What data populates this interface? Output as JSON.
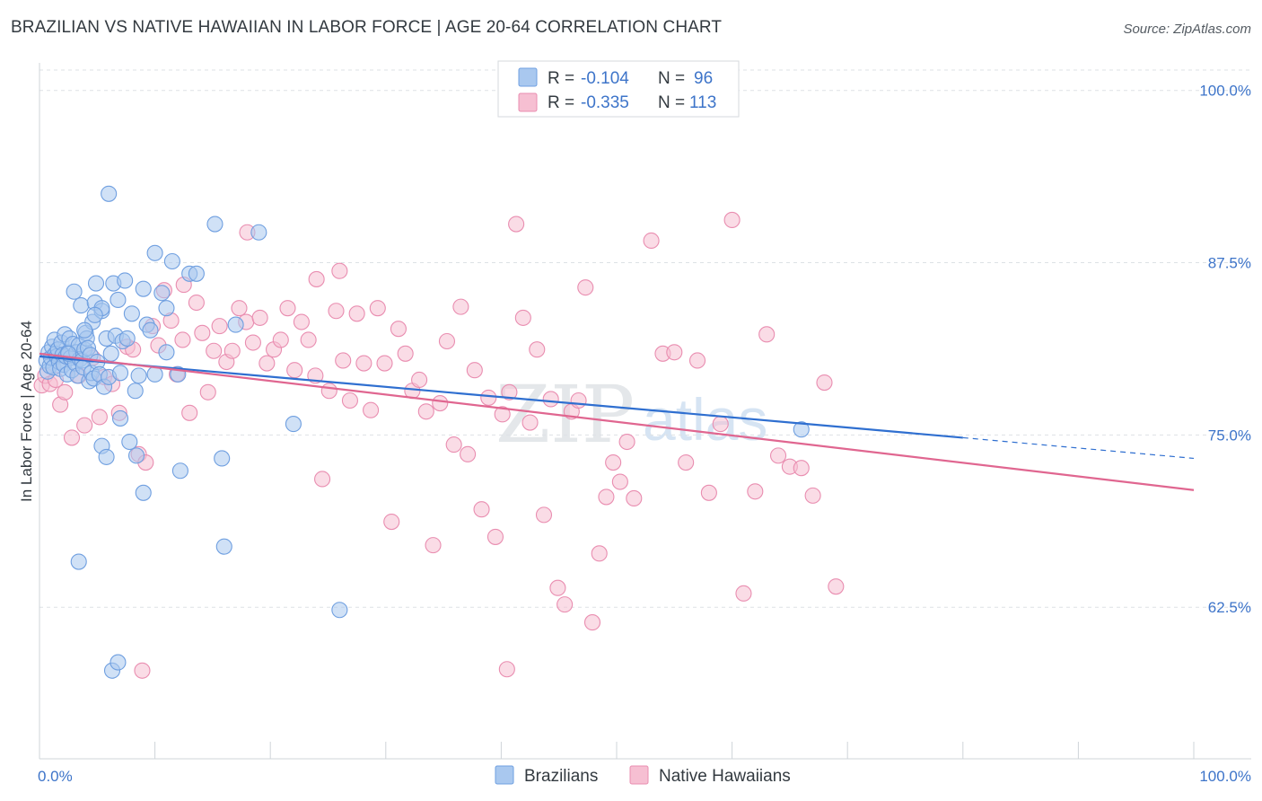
{
  "header": {
    "title": "BRAZILIAN VS NATIVE HAWAIIAN IN LABOR FORCE | AGE 20-64 CORRELATION CHART",
    "source": "Source: ZipAtlas.com"
  },
  "colors": {
    "blue_fill": "#a9c8ef",
    "blue_stroke": "#6f9fe0",
    "blue_line": "#2f6fd0",
    "pink_fill": "#f6bfd2",
    "pink_stroke": "#e98db0",
    "pink_line": "#e06690",
    "grid": "#dde1e5",
    "axis_text": "#3d74c9"
  },
  "legend": {
    "r_label": "R =",
    "n_label": "N =",
    "rows": [
      {
        "name": "Brazilians",
        "r": "-0.104",
        "n": "96"
      },
      {
        "name": "Native Hawaiians",
        "r": "-0.335",
        "n": "113"
      }
    ]
  },
  "watermark": {
    "zip": "ZIP",
    "atlas": "atlas"
  },
  "chart_data": {
    "type": "scatter",
    "title": "BRAZILIAN VS NATIVE HAWAIIAN IN LABOR FORCE | AGE 20-64 CORRELATION CHART",
    "xlabel": "",
    "ylabel": "In Labor Force | Age 20-64",
    "xlim": [
      0,
      100
    ],
    "ylim": [
      51.5,
      102
    ],
    "x_tick_labels": [
      "0.0%",
      "100.0%"
    ],
    "y_ticks": [
      62.5,
      75.0,
      87.5,
      100.0
    ],
    "y_tick_labels": [
      "62.5%",
      "75.0%",
      "87.5%",
      "100.0%"
    ],
    "series": [
      {
        "name": "Brazilians",
        "r": -0.104,
        "n": 96,
        "trend": {
          "x0": 0,
          "y0": 80.7,
          "x1": 80,
          "y1": 74.8,
          "dash_to_x": 100,
          "dash_to_y": 73.3
        },
        "points": [
          [
            0.6,
            80.4
          ],
          [
            0.7,
            79.6
          ],
          [
            0.8,
            81.0
          ],
          [
            0.9,
            80.0
          ],
          [
            1.0,
            80.6
          ],
          [
            1.1,
            81.4
          ],
          [
            1.2,
            79.9
          ],
          [
            1.3,
            81.9
          ],
          [
            1.4,
            80.9
          ],
          [
            1.5,
            80.7
          ],
          [
            1.6,
            81.2
          ],
          [
            1.7,
            80.3
          ],
          [
            1.8,
            79.8
          ],
          [
            1.9,
            81.7
          ],
          [
            2.0,
            80.8
          ],
          [
            2.1,
            80.1
          ],
          [
            2.2,
            82.3
          ],
          [
            2.3,
            80.7
          ],
          [
            2.4,
            79.4
          ],
          [
            2.5,
            81.0
          ],
          [
            2.6,
            82.0
          ],
          [
            2.7,
            80.6
          ],
          [
            2.8,
            79.7
          ],
          [
            2.9,
            81.6
          ],
          [
            3.0,
            85.4
          ],
          [
            3.1,
            80.2
          ],
          [
            3.2,
            81.0
          ],
          [
            3.3,
            79.3
          ],
          [
            3.4,
            81.5
          ],
          [
            3.5,
            80.5
          ],
          [
            3.6,
            84.4
          ],
          [
            3.7,
            80.4
          ],
          [
            3.8,
            79.9
          ],
          [
            3.9,
            81.2
          ],
          [
            4.0,
            82.4
          ],
          [
            4.1,
            82.0
          ],
          [
            4.2,
            81.3
          ],
          [
            4.3,
            78.9
          ],
          [
            4.4,
            80.8
          ],
          [
            4.5,
            79.5
          ],
          [
            4.6,
            83.2
          ],
          [
            4.7,
            79.1
          ],
          [
            4.8,
            84.6
          ],
          [
            4.9,
            86.0
          ],
          [
            5.0,
            80.3
          ],
          [
            5.2,
            79.4
          ],
          [
            5.4,
            84.0
          ],
          [
            5.6,
            78.5
          ],
          [
            5.8,
            82.0
          ],
          [
            6.0,
            79.2
          ],
          [
            6.2,
            80.9
          ],
          [
            6.4,
            86.0
          ],
          [
            6.6,
            82.2
          ],
          [
            6.8,
            84.8
          ],
          [
            7.0,
            79.5
          ],
          [
            7.2,
            81.8
          ],
          [
            7.4,
            86.2
          ],
          [
            7.6,
            82.0
          ],
          [
            8.0,
            83.8
          ],
          [
            8.3,
            78.2
          ],
          [
            8.6,
            79.3
          ],
          [
            9.0,
            85.6
          ],
          [
            9.3,
            83.0
          ],
          [
            9.6,
            82.6
          ],
          [
            10.0,
            88.2
          ],
          [
            10.6,
            85.3
          ],
          [
            11.0,
            84.2
          ],
          [
            11.5,
            87.6
          ],
          [
            12.0,
            79.4
          ],
          [
            13.0,
            86.7
          ],
          [
            13.6,
            86.7
          ],
          [
            15.2,
            90.3
          ],
          [
            15.8,
            73.3
          ],
          [
            16.0,
            66.9
          ],
          [
            17.0,
            83.0
          ],
          [
            19.0,
            89.7
          ],
          [
            22.0,
            75.8
          ],
          [
            26.0,
            62.3
          ],
          [
            6.0,
            92.5
          ],
          [
            7.0,
            76.2
          ],
          [
            7.8,
            74.5
          ],
          [
            8.4,
            73.5
          ],
          [
            9.0,
            70.8
          ],
          [
            10.0,
            79.4
          ],
          [
            11.0,
            81.0
          ],
          [
            12.2,
            72.4
          ],
          [
            3.4,
            65.8
          ],
          [
            5.4,
            74.2
          ],
          [
            5.8,
            73.4
          ],
          [
            6.3,
            57.9
          ],
          [
            6.8,
            58.5
          ],
          [
            5.4,
            84.2
          ],
          [
            4.8,
            83.7
          ],
          [
            3.9,
            82.6
          ],
          [
            2.5,
            80.9
          ],
          [
            66.0,
            75.4
          ]
        ]
      },
      {
        "name": "Native Hawaiians",
        "r": -0.335,
        "n": 113,
        "trend": {
          "x0": 0,
          "y0": 80.9,
          "x1": 100,
          "y1": 71.0
        },
        "points": [
          [
            0.2,
            78.6
          ],
          [
            0.5,
            79.3
          ],
          [
            0.9,
            78.7
          ],
          [
            1.4,
            79.0
          ],
          [
            1.8,
            77.2
          ],
          [
            2.2,
            78.1
          ],
          [
            2.8,
            74.8
          ],
          [
            3.4,
            79.3
          ],
          [
            3.9,
            75.7
          ],
          [
            4.6,
            80.6
          ],
          [
            5.2,
            76.3
          ],
          [
            5.6,
            79.2
          ],
          [
            6.3,
            78.7
          ],
          [
            6.9,
            76.6
          ],
          [
            7.6,
            81.4
          ],
          [
            8.1,
            81.2
          ],
          [
            8.6,
            73.6
          ],
          [
            9.2,
            73.0
          ],
          [
            9.8,
            82.9
          ],
          [
            10.3,
            81.5
          ],
          [
            10.8,
            85.5
          ],
          [
            11.4,
            83.3
          ],
          [
            11.9,
            79.4
          ],
          [
            12.4,
            81.9
          ],
          [
            13.0,
            76.6
          ],
          [
            13.6,
            84.6
          ],
          [
            14.1,
            82.4
          ],
          [
            14.6,
            78.1
          ],
          [
            15.1,
            81.1
          ],
          [
            15.6,
            82.9
          ],
          [
            16.2,
            80.3
          ],
          [
            16.7,
            81.1
          ],
          [
            17.3,
            84.2
          ],
          [
            17.9,
            83.2
          ],
          [
            18.5,
            81.7
          ],
          [
            19.1,
            83.5
          ],
          [
            19.7,
            80.2
          ],
          [
            20.3,
            81.2
          ],
          [
            20.9,
            81.9
          ],
          [
            21.5,
            84.2
          ],
          [
            22.1,
            79.7
          ],
          [
            22.7,
            83.2
          ],
          [
            23.3,
            81.9
          ],
          [
            23.9,
            79.3
          ],
          [
            24.5,
            71.8
          ],
          [
            25.1,
            78.2
          ],
          [
            25.7,
            84.0
          ],
          [
            26.3,
            80.4
          ],
          [
            26.9,
            77.5
          ],
          [
            27.5,
            83.8
          ],
          [
            28.1,
            80.2
          ],
          [
            28.7,
            76.8
          ],
          [
            29.3,
            84.2
          ],
          [
            29.9,
            80.2
          ],
          [
            30.5,
            68.7
          ],
          [
            31.1,
            82.7
          ],
          [
            31.7,
            80.9
          ],
          [
            32.3,
            78.2
          ],
          [
            32.9,
            79.0
          ],
          [
            33.5,
            76.7
          ],
          [
            34.1,
            67.0
          ],
          [
            34.7,
            77.3
          ],
          [
            35.3,
            81.8
          ],
          [
            35.9,
            74.3
          ],
          [
            36.5,
            84.3
          ],
          [
            37.1,
            73.6
          ],
          [
            37.7,
            79.7
          ],
          [
            38.3,
            69.6
          ],
          [
            38.9,
            77.7
          ],
          [
            39.5,
            67.6
          ],
          [
            40.1,
            76.5
          ],
          [
            40.7,
            78.1
          ],
          [
            41.3,
            90.3
          ],
          [
            41.9,
            83.5
          ],
          [
            42.5,
            75.9
          ],
          [
            43.1,
            81.2
          ],
          [
            43.7,
            69.2
          ],
          [
            44.3,
            77.6
          ],
          [
            44.9,
            63.9
          ],
          [
            45.5,
            62.7
          ],
          [
            46.1,
            76.7
          ],
          [
            46.7,
            77.5
          ],
          [
            47.3,
            85.7
          ],
          [
            47.9,
            61.4
          ],
          [
            48.5,
            66.4
          ],
          [
            49.1,
            70.5
          ],
          [
            49.7,
            73.0
          ],
          [
            50.3,
            71.6
          ],
          [
            50.9,
            74.5
          ],
          [
            51.5,
            70.4
          ],
          [
            53.0,
            89.1
          ],
          [
            54.0,
            80.9
          ],
          [
            55.0,
            81.0
          ],
          [
            56.0,
            73.0
          ],
          [
            57.0,
            80.4
          ],
          [
            58.0,
            70.8
          ],
          [
            59.0,
            75.8
          ],
          [
            60.0,
            90.6
          ],
          [
            61.0,
            63.5
          ],
          [
            62.0,
            70.9
          ],
          [
            63.0,
            82.3
          ],
          [
            64.0,
            73.5
          ],
          [
            65.0,
            72.7
          ],
          [
            66.0,
            72.6
          ],
          [
            67.0,
            70.6
          ],
          [
            68.0,
            78.8
          ],
          [
            69.0,
            64.0
          ],
          [
            8.9,
            57.9
          ],
          [
            40.5,
            58.0
          ],
          [
            12.5,
            85.9
          ],
          [
            24.0,
            86.3
          ],
          [
            26.0,
            86.9
          ],
          [
            18.0,
            89.7
          ]
        ]
      }
    ]
  }
}
